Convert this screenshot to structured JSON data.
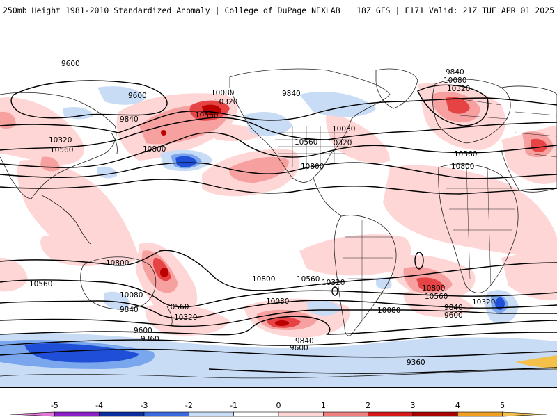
{
  "header": {
    "left_title": "250mb Height 1981-2010 Standardized Anomaly | College of DuPage NEXLAB",
    "right_title": "18Z GFS | F171 Valid: 21Z TUE APR 01 2025"
  },
  "colors": {
    "pos1": "#ffd6d6",
    "pos2": "#f6a0a0",
    "pos3": "#e64444",
    "pos4": "#bb0000",
    "neg1": "#c8dcf5",
    "neg2": "#7aa6ee",
    "neg3": "#1f4fd6",
    "neg4": "#0a2ea0"
  },
  "contour_labels": [
    {
      "text": "9600"
    },
    {
      "text": "9600"
    },
    {
      "text": "9840"
    },
    {
      "text": "10320"
    },
    {
      "text": "10560"
    },
    {
      "text": "10080"
    },
    {
      "text": "10320"
    },
    {
      "text": "10560"
    },
    {
      "text": "10800"
    },
    {
      "text": "9840"
    },
    {
      "text": "10080"
    },
    {
      "text": "10560"
    },
    {
      "text": "10320"
    },
    {
      "text": "10800"
    },
    {
      "text": "9840"
    },
    {
      "text": "10080"
    },
    {
      "text": "10320"
    },
    {
      "text": "10560"
    },
    {
      "text": "10800"
    },
    {
      "text": "10800"
    },
    {
      "text": "10560"
    },
    {
      "text": "10080"
    },
    {
      "text": "9840"
    },
    {
      "text": "10560"
    },
    {
      "text": "10320"
    },
    {
      "text": "9600"
    },
    {
      "text": "9360"
    },
    {
      "text": "10800"
    },
    {
      "text": "10560"
    },
    {
      "text": "10320"
    },
    {
      "text": "10080"
    },
    {
      "text": "9840"
    },
    {
      "text": "9600"
    },
    {
      "text": "10800"
    },
    {
      "text": "10560"
    },
    {
      "text": "10080"
    },
    {
      "text": "9840"
    },
    {
      "text": "9600"
    },
    {
      "text": "10320"
    },
    {
      "text": "9360"
    }
  ],
  "colorbar": {
    "ticks": [
      "-5",
      "-4",
      "-3",
      "-2",
      "-1",
      "0",
      "1",
      "2",
      "3",
      "4",
      "5"
    ],
    "colors": [
      "#e07ad6",
      "#8a1fc9",
      "#0a2ea0",
      "#3a6ae0",
      "#c8dcf5",
      "#ffffff",
      "#ffd6d6",
      "#f08080",
      "#d81818",
      "#aa0000",
      "#f0a020",
      "#f0c050"
    ]
  }
}
